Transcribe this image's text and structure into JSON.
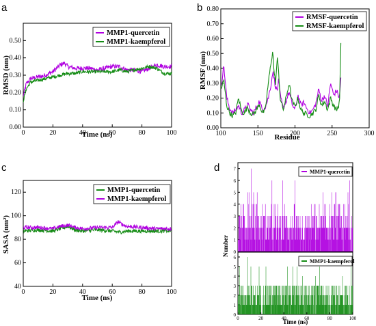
{
  "colors": {
    "quercetin": "#b000e0",
    "kaempferol": "#148c14"
  },
  "chart_data": [
    {
      "panel": "a",
      "type": "line",
      "xlabel": "Time (ns)",
      "ylabel": "RMSD (nm)",
      "xlim": [
        0,
        100
      ],
      "ylim": [
        0,
        0.6
      ],
      "xticks": [
        "0",
        "20",
        "40",
        "60",
        "80",
        "100"
      ],
      "yticks": [
        "0.00",
        "0.10",
        "0.20",
        "0.30",
        "0.40",
        "0.50"
      ],
      "legend": "top-right",
      "series": [
        {
          "name": "MMP1-quercetin",
          "color": "#b000e0",
          "x": [
            0,
            2,
            5,
            10,
            15,
            20,
            25,
            28,
            30,
            35,
            40,
            45,
            50,
            55,
            60,
            65,
            70,
            75,
            80,
            85,
            90,
            95,
            100
          ],
          "y": [
            0.18,
            0.25,
            0.28,
            0.29,
            0.3,
            0.32,
            0.36,
            0.37,
            0.35,
            0.34,
            0.34,
            0.34,
            0.33,
            0.34,
            0.35,
            0.35,
            0.33,
            0.33,
            0.32,
            0.34,
            0.36,
            0.35,
            0.35
          ],
          "noise": 0.013
        },
        {
          "name": "MMP1-kaempferol",
          "color": "#148c14",
          "x": [
            0,
            2,
            5,
            10,
            15,
            20,
            25,
            30,
            35,
            40,
            45,
            50,
            55,
            60,
            65,
            70,
            75,
            80,
            85,
            90,
            95,
            100
          ],
          "y": [
            0.15,
            0.22,
            0.26,
            0.27,
            0.28,
            0.29,
            0.3,
            0.31,
            0.31,
            0.32,
            0.32,
            0.32,
            0.32,
            0.32,
            0.33,
            0.32,
            0.33,
            0.34,
            0.35,
            0.34,
            0.31,
            0.31
          ],
          "noise": 0.01
        }
      ]
    },
    {
      "panel": "b",
      "type": "line",
      "xlabel": "Residue",
      "ylabel": "RMSF (nm)",
      "xlim": [
        100,
        300
      ],
      "ylim": [
        0,
        0.8
      ],
      "xticks": [
        "100",
        "150",
        "200",
        "250",
        "300"
      ],
      "yticks": [
        "0.00",
        "0.10",
        "0.20",
        "0.30",
        "0.40",
        "0.50",
        "0.60",
        "0.70",
        "0.80"
      ],
      "legend": "top-right",
      "series": [
        {
          "name": "RMSF-quercetin",
          "color": "#b000e0",
          "x": [
            101,
            104,
            108,
            112,
            116,
            120,
            124,
            128,
            132,
            136,
            140,
            144,
            148,
            152,
            156,
            160,
            164,
            168,
            170,
            172,
            174,
            176,
            178,
            180,
            184,
            188,
            192,
            196,
            200,
            204,
            208,
            212,
            216,
            220,
            224,
            228,
            232,
            236,
            240,
            244,
            248,
            252,
            256,
            260,
            262
          ],
          "y": [
            0.3,
            0.42,
            0.2,
            0.13,
            0.1,
            0.12,
            0.15,
            0.1,
            0.12,
            0.16,
            0.12,
            0.1,
            0.14,
            0.18,
            0.12,
            0.14,
            0.2,
            0.3,
            0.38,
            0.33,
            0.27,
            0.25,
            0.32,
            0.22,
            0.13,
            0.18,
            0.24,
            0.16,
            0.12,
            0.22,
            0.15,
            0.17,
            0.13,
            0.1,
            0.12,
            0.16,
            0.26,
            0.18,
            0.22,
            0.14,
            0.3,
            0.22,
            0.25,
            0.2,
            0.35
          ],
          "noise": 0.018
        },
        {
          "name": "RMSF-kaempferol",
          "color": "#148c14",
          "x": [
            101,
            104,
            108,
            112,
            116,
            120,
            124,
            128,
            132,
            136,
            140,
            144,
            148,
            152,
            156,
            160,
            164,
            168,
            170,
            172,
            174,
            176,
            178,
            180,
            184,
            188,
            192,
            196,
            200,
            204,
            208,
            212,
            216,
            220,
            224,
            228,
            232,
            236,
            240,
            244,
            248,
            252,
            256,
            260,
            262
          ],
          "y": [
            0.27,
            0.32,
            0.15,
            0.1,
            0.08,
            0.1,
            0.2,
            0.11,
            0.1,
            0.14,
            0.1,
            0.09,
            0.12,
            0.16,
            0.1,
            0.12,
            0.3,
            0.45,
            0.52,
            0.36,
            0.3,
            0.47,
            0.38,
            0.2,
            0.12,
            0.2,
            0.3,
            0.18,
            0.14,
            0.2,
            0.12,
            0.1,
            0.09,
            0.08,
            0.1,
            0.12,
            0.22,
            0.15,
            0.18,
            0.12,
            0.2,
            0.15,
            0.12,
            0.16,
            0.61
          ],
          "noise": 0.018
        }
      ]
    },
    {
      "panel": "c",
      "type": "line",
      "xlabel": "Time (ns)",
      "ylabel": "SASA (nm²)",
      "xlim": [
        0,
        100
      ],
      "ylim": [
        40,
        130
      ],
      "xticks": [
        "0",
        "20",
        "40",
        "60",
        "80",
        "100"
      ],
      "yticks": [
        "40",
        "60",
        "80",
        "100",
        "120"
      ],
      "legend": "top-right",
      "series": [
        {
          "name": "MMP1-quercetin",
          "color": "#148c14",
          "x": [
            0,
            10,
            20,
            25,
            30,
            35,
            40,
            50,
            60,
            65,
            70,
            80,
            90,
            100
          ],
          "y": [
            87,
            88,
            87,
            89,
            91,
            88,
            87,
            88,
            87,
            86,
            87,
            87,
            87,
            87
          ],
          "noise": 1.6
        },
        {
          "name": "MMP1-kaempferol",
          "color": "#b000e0",
          "x": [
            0,
            10,
            20,
            25,
            30,
            35,
            40,
            50,
            60,
            64,
            66,
            70,
            80,
            90,
            100
          ],
          "y": [
            90,
            90,
            89,
            91,
            92,
            90,
            89,
            90,
            90,
            95,
            93,
            91,
            90,
            89,
            89
          ],
          "noise": 1.6
        }
      ]
    },
    {
      "panel": "d",
      "type": "bar",
      "xlabel": "Time (ns)",
      "ylabel": "Number",
      "xlim": [
        0,
        100
      ],
      "xticks": [
        "0",
        "20",
        "40",
        "60",
        "80",
        "100"
      ],
      "legend": "top-right",
      "series": [
        {
          "name": "MMP1-quercetin",
          "color": "#b000e0",
          "ylim": [
            0,
            7.5
          ],
          "yticks": [
            "0",
            "1",
            "2",
            "3",
            "4",
            "5",
            "6",
            "7"
          ],
          "typical_range": [
            0,
            4
          ],
          "max": 7
        },
        {
          "name": "MMP1-kaempferol",
          "color": "#148c14",
          "ylim": [
            0,
            6.5
          ],
          "yticks": [
            "0",
            "1",
            "2",
            "3",
            "4",
            "5",
            "6"
          ],
          "typical_range": [
            0,
            3
          ],
          "max": 6
        }
      ]
    }
  ],
  "panel_labels": [
    "a",
    "b",
    "c",
    "d"
  ]
}
